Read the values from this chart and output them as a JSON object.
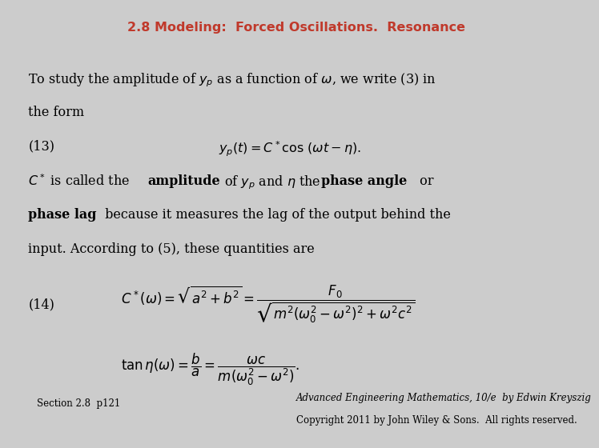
{
  "title": "2.8 Modeling:  Forced Oscillations.  Resonance",
  "title_color": "#C0392B",
  "title_fontsize": 11.5,
  "box_bg_color": "#C8D8F0",
  "box_border_color": "#5599BB",
  "fig_bg_color": "#CCCCCC",
  "footer_left": "Section 2.8  p121",
  "footer_right_line1": "Advanced Engineering Mathematics, 10/e  by Edwin Kreyszig",
  "footer_right_line2": "Copyright 2011 by John Wiley & Sons.  All rights reserved.",
  "footer_fontsize": 8.5,
  "text_fontsize": 11.5,
  "math_fontsize": 11.5
}
